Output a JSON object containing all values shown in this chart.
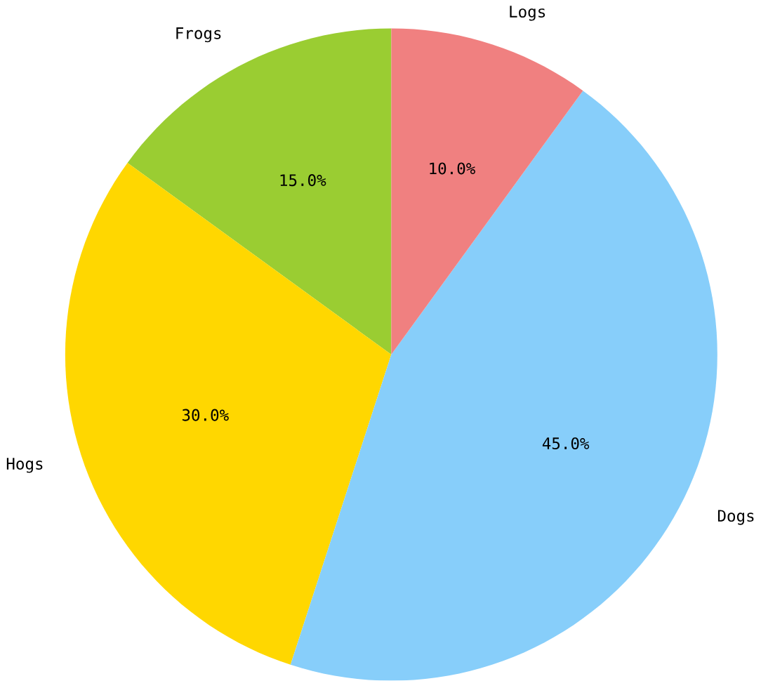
{
  "chart_data": {
    "type": "pie",
    "categories": [
      "Frogs",
      "Hogs",
      "Dogs",
      "Logs"
    ],
    "values": [
      15,
      30,
      45,
      10
    ],
    "colors": [
      "#9acd32",
      "#ffd700",
      "#87cefa",
      "#f08080"
    ],
    "value_labels": [
      "15.0%",
      "30.0%",
      "45.0%",
      "10.0%"
    ]
  }
}
